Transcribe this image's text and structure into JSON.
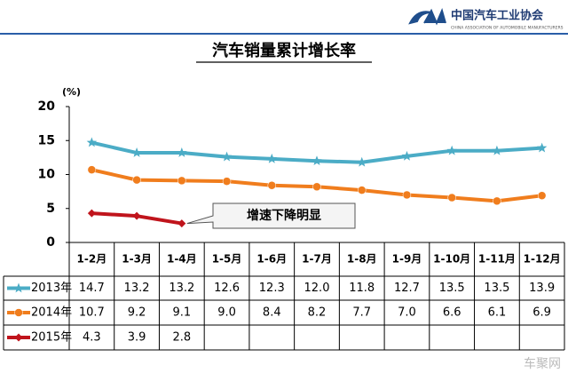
{
  "header": {
    "org_name": "中国汽车工业协会",
    "org_name_en": "CHINA ASSOCIATION OF AUTOMOBILE MANUFACTURERS"
  },
  "watermark": "车聚网",
  "chart_data": {
    "type": "line",
    "title": "汽车销量累计增长率",
    "y_unit": "(%)",
    "categories": [
      "1-2月",
      "1-3月",
      "1-4月",
      "1-5月",
      "1-6月",
      "1-7月",
      "1-8月",
      "1-9月",
      "1-10月",
      "1-11月",
      "1-12月"
    ],
    "ylim": [
      0,
      20
    ],
    "yticks": [
      0,
      5,
      10,
      15,
      20
    ],
    "series": [
      {
        "name": "2013年",
        "color": "#4bacc6",
        "marker": "star",
        "values": [
          14.7,
          13.2,
          13.2,
          12.6,
          12.3,
          12.0,
          11.8,
          12.7,
          13.5,
          13.5,
          13.9
        ],
        "value_labels": [
          "14.7",
          "13.2",
          "13.2",
          "12.6",
          "12.3",
          "12.0",
          "11.8",
          "12.7",
          "13.5",
          "13.5",
          "13.9"
        ]
      },
      {
        "name": "2014年",
        "color": "#f07d1d",
        "marker": "circle",
        "values": [
          10.7,
          9.2,
          9.1,
          9.0,
          8.4,
          8.2,
          7.7,
          7.0,
          6.6,
          6.1,
          6.9
        ],
        "value_labels": [
          "10.7",
          "9.2",
          "9.1",
          "9.0",
          "8.4",
          "8.2",
          "7.7",
          "7.0",
          "6.6",
          "6.1",
          "6.9"
        ]
      },
      {
        "name": "2015年",
        "color": "#c0141c",
        "marker": "diamond",
        "values": [
          4.3,
          3.9,
          2.8,
          null,
          null,
          null,
          null,
          null,
          null,
          null,
          null
        ],
        "value_labels": [
          "4.3",
          "3.9",
          "2.8",
          null,
          null,
          null,
          null,
          null,
          null,
          null,
          null
        ]
      }
    ],
    "annotation": "增速下降明显"
  }
}
